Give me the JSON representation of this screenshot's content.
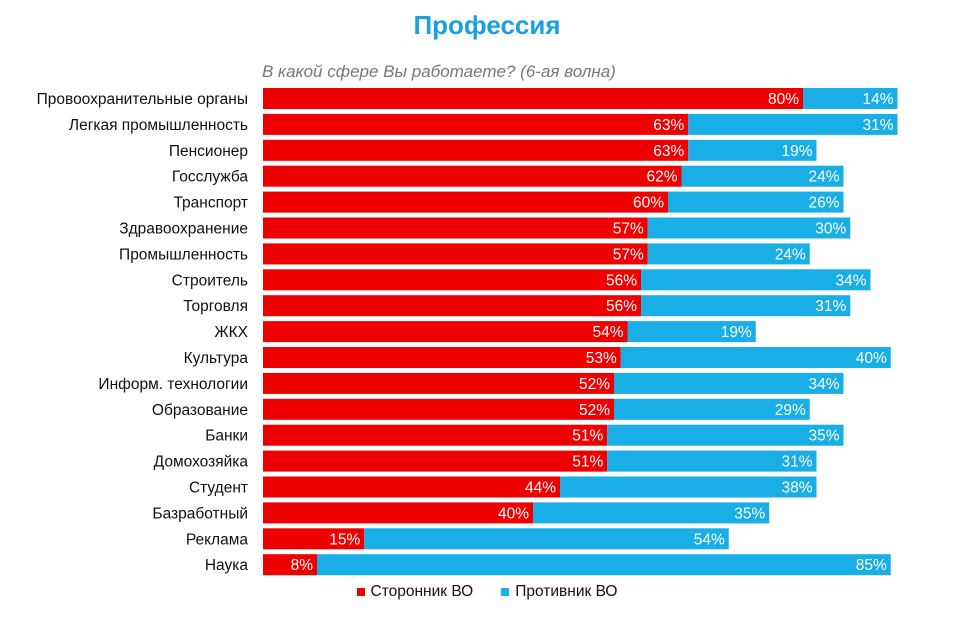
{
  "colors": {
    "supporter": "#ee0000",
    "opponent": "#1aaee6",
    "title": "#1a9fe0"
  },
  "chart_data": {
    "type": "bar",
    "orientation": "horizontal",
    "stacked": true,
    "title": "Профессия",
    "subtitle": "В какой сфере Вы работаете? (6-ая волна)",
    "xlim": [
      0,
      100
    ],
    "value_suffix": "%",
    "legend_position": "bottom",
    "categories": [
      "Провоохранительные органы",
      "Легкая промышленность",
      "Пенсионер",
      "Госслужба",
      "Транспорт",
      "Здравоохранение",
      "Промышленность",
      "Строитель",
      "Торговля",
      "ЖКХ",
      "Культура",
      "Информ. технологии",
      "Образование",
      "Банки",
      "Домохозяйка",
      "Студент",
      "Базработный",
      "Реклама",
      "Наука"
    ],
    "series": [
      {
        "name": "Сторонник ВО",
        "values": [
          80,
          63,
          63,
          62,
          60,
          57,
          57,
          56,
          56,
          54,
          53,
          52,
          52,
          51,
          51,
          44,
          40,
          15,
          8
        ]
      },
      {
        "name": "Противник ВО",
        "values": [
          14,
          31,
          19,
          24,
          26,
          30,
          24,
          34,
          31,
          19,
          40,
          34,
          29,
          35,
          31,
          38,
          35,
          54,
          85
        ]
      }
    ]
  }
}
